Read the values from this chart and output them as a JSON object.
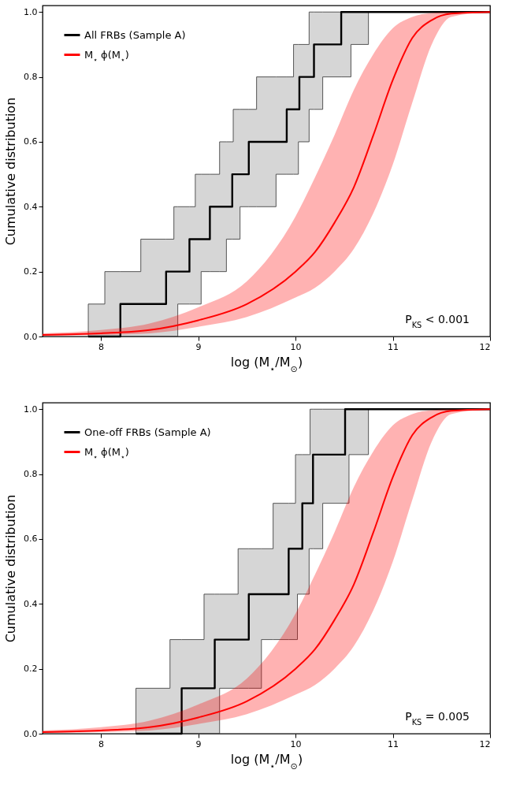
{
  "chart_data": [
    {
      "type": "step",
      "xlabel": "log (M$_{⋆}$/M$_{⊙}$)",
      "ylabel": "Cumulative distribution",
      "xlim": [
        7.4,
        12
      ],
      "ylim": [
        0,
        1.02
      ],
      "xticks": [
        8,
        9,
        10,
        11,
        12
      ],
      "yticks": [
        {
          "value": 0,
          "label": "0.0"
        },
        {
          "value": 0.2,
          "label": "0.2"
        },
        {
          "value": 0.4,
          "label": "0.4"
        },
        {
          "value": 0.6,
          "label": "0.6"
        },
        {
          "value": 0.8,
          "label": "0.8"
        },
        {
          "value": 1,
          "label": "1.0"
        }
      ],
      "legend": "top left",
      "annotations": [
        "P$_{KS}$ < 0.001"
      ],
      "series": [
        {
          "name": "All FRBs (Sample A)",
          "color": "#000000",
          "x": [
            7.87,
            8.04,
            8.2,
            8.41,
            8.67,
            8.75,
            8.79,
            8.91,
            8.97,
            9.03,
            9.12,
            9.22,
            9.29,
            9.35,
            9.36,
            9.43,
            9.52,
            9.6,
            9.8,
            9.91,
            9.98,
            10.03,
            10.04,
            10.14,
            10.19,
            10.28,
            10.47,
            10.57,
            10.75,
            12
          ],
          "values": [
            0,
            0,
            0.1,
            0.1,
            0.2,
            0.2,
            0.2,
            0.3,
            0.3,
            0.3,
            0.4,
            0.4,
            0.4,
            0.5,
            0.5,
            0.5,
            0.6,
            0.6,
            0.6,
            0.7,
            0.7,
            0.7,
            0.8,
            0.8,
            0.9,
            0.9,
            1,
            1,
            1,
            1
          ],
          "lower": [
            0,
            0,
            0,
            0,
            0,
            0,
            0.1,
            0.1,
            0.1,
            0.2,
            0.2,
            0.2,
            0.3,
            0.3,
            0.3,
            0.4,
            0.4,
            0.4,
            0.5,
            0.5,
            0.5,
            0.6,
            0.6,
            0.7,
            0.7,
            0.8,
            0.8,
            0.9,
            1,
            1
          ],
          "upper": [
            0.1,
            0.2,
            0.2,
            0.3,
            0.3,
            0.4,
            0.4,
            0.4,
            0.5,
            0.5,
            0.5,
            0.6,
            0.6,
            0.6,
            0.7,
            0.7,
            0.7,
            0.8,
            0.8,
            0.8,
            0.9,
            0.9,
            0.9,
            1,
            1,
            1,
            1,
            1,
            1,
            1
          ]
        },
        {
          "name": "M$_{⋆}$ ϕ(M$_{⋆}$)",
          "type": "line",
          "color": "#ff0000",
          "x": [
            7.4,
            8,
            8.5,
            9,
            9.5,
            10,
            10.2,
            10.4,
            10.6,
            10.8,
            11,
            11.2,
            11.4,
            11.6,
            12
          ],
          "values": [
            0.005,
            0.01,
            0.02,
            0.05,
            0.1,
            0.2,
            0.26,
            0.35,
            0.46,
            0.62,
            0.79,
            0.92,
            0.975,
            0.995,
            1
          ],
          "lower": [
            0.002,
            0.005,
            0.01,
            0.03,
            0.06,
            0.12,
            0.15,
            0.2,
            0.27,
            0.38,
            0.53,
            0.72,
            0.9,
            0.985,
            1
          ],
          "upper": [
            0.01,
            0.02,
            0.04,
            0.09,
            0.17,
            0.37,
            0.49,
            0.62,
            0.76,
            0.87,
            0.95,
            0.985,
            0.997,
            1,
            1
          ]
        }
      ]
    },
    {
      "type": "step",
      "xlabel": "log (M$_{⋆}$/M$_{⊙}$)",
      "ylabel": "Cumulative distribution",
      "xlim": [
        7.4,
        12
      ],
      "ylim": [
        0,
        1.02
      ],
      "xticks": [
        8,
        9,
        10,
        11,
        12
      ],
      "yticks": [
        {
          "value": 0,
          "label": "0.0"
        },
        {
          "value": 0.2,
          "label": "0.2"
        },
        {
          "value": 0.4,
          "label": "0.4"
        },
        {
          "value": 0.6,
          "label": "0.6"
        },
        {
          "value": 0.8,
          "label": "0.8"
        },
        {
          "value": 1,
          "label": "1.0"
        }
      ],
      "legend": "top left",
      "annotations": [
        "P$_{KS}$ = 0.005"
      ],
      "series": [
        {
          "name": "One-off FRBs (Sample A)",
          "color": "#000000",
          "x": [
            8.36,
            8.71,
            8.83,
            9.06,
            9.17,
            9.22,
            9.41,
            9.52,
            9.65,
            9.77,
            9.93,
            10.0,
            10.02,
            10.07,
            10.14,
            10.15,
            10.18,
            10.28,
            10.51,
            10.55,
            10.75,
            12
          ],
          "values": [
            0,
            0,
            0.14,
            0.14,
            0.29,
            0.29,
            0.29,
            0.43,
            0.43,
            0.43,
            0.57,
            0.57,
            0.57,
            0.71,
            0.71,
            0.71,
            0.86,
            0.86,
            1,
            1,
            1,
            1
          ],
          "lower": [
            0,
            0,
            0,
            0,
            0,
            0.14,
            0.14,
            0.14,
            0.29,
            0.29,
            0.29,
            0.29,
            0.43,
            0.43,
            0.57,
            0.57,
            0.57,
            0.71,
            0.71,
            0.86,
            1,
            1
          ],
          "upper": [
            0.14,
            0.29,
            0.29,
            0.43,
            0.43,
            0.43,
            0.57,
            0.57,
            0.57,
            0.71,
            0.71,
            0.86,
            0.86,
            0.86,
            0.86,
            1,
            1,
            1,
            1,
            1,
            1,
            1
          ]
        },
        {
          "name": "M$_{⋆}$ ϕ(M$_{⋆}$)",
          "type": "line",
          "color": "#ff0000",
          "x": [
            7.4,
            8,
            8.5,
            9,
            9.5,
            10,
            10.2,
            10.4,
            10.6,
            10.8,
            11,
            11.2,
            11.4,
            11.6,
            12
          ],
          "values": [
            0.005,
            0.01,
            0.02,
            0.05,
            0.1,
            0.2,
            0.26,
            0.35,
            0.46,
            0.62,
            0.79,
            0.92,
            0.975,
            0.995,
            1
          ],
          "lower": [
            0.002,
            0.005,
            0.01,
            0.03,
            0.06,
            0.12,
            0.15,
            0.2,
            0.27,
            0.38,
            0.53,
            0.72,
            0.9,
            0.985,
            1
          ],
          "upper": [
            0.01,
            0.02,
            0.04,
            0.09,
            0.17,
            0.37,
            0.49,
            0.62,
            0.76,
            0.87,
            0.95,
            0.985,
            0.997,
            1,
            1
          ]
        }
      ]
    }
  ]
}
